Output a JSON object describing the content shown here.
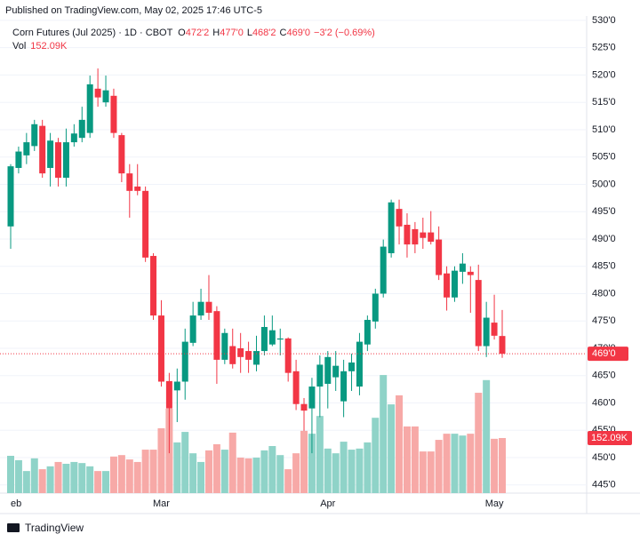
{
  "header": {
    "published": "Published on TradingView.com, May 02, 2025 17:46 UTC-5",
    "symbol": "Corn Futures (Jul 2025) · 1D · CBOT",
    "ohlc": [
      {
        "key": "O",
        "value": "472'2"
      },
      {
        "key": "H",
        "value": "477'0"
      },
      {
        "key": "L",
        "value": "468'2"
      },
      {
        "key": "C",
        "value": "469'0"
      }
    ],
    "change": "−3'2 (−0.69%)",
    "volume_name": "Vol",
    "volume_label": "152.09K"
  },
  "footer": {
    "logo": "TradingView"
  },
  "chart_data": {
    "type": "candlestick",
    "categories": [
      "eb",
      null,
      null,
      null,
      null,
      null,
      null,
      null,
      null,
      null,
      null,
      null,
      null,
      null,
      null,
      null,
      null,
      null,
      null,
      "Mar",
      null,
      null,
      null,
      null,
      null,
      null,
      null,
      null,
      null,
      null,
      null,
      null,
      null,
      null,
      null,
      null,
      null,
      null,
      null,
      null,
      "Apr",
      null,
      null,
      null,
      null,
      null,
      null,
      null,
      null,
      null,
      null,
      null,
      null,
      null,
      null,
      null,
      null,
      null,
      null,
      null,
      null,
      "May",
      null
    ],
    "open": [
      492.3,
      503,
      505.3,
      507,
      510.7,
      503,
      507.7,
      501.2,
      507.7,
      508.5,
      509.4,
      517.5,
      515,
      516.2,
      509,
      502,
      499.6,
      498.8,
      486.9,
      476,
      464,
      462.3,
      463.9,
      471,
      476,
      478.5,
      476.8,
      467.9,
      470.4,
      470,
      469.5,
      467,
      469.5,
      470.7,
      471.6,
      471.8,
      465.8,
      459.8,
      459,
      463,
      463.5,
      464.7,
      460.3,
      465.8,
      463,
      470.7,
      474.9,
      480,
      487.4,
      495.5,
      492.6,
      491.8,
      491.2,
      491.2,
      489.9,
      483.7,
      479.3,
      484,
      484,
      482.5,
      470.4,
      474.7,
      472.25
    ],
    "high": [
      503.7,
      506.9,
      509.4,
      511.8,
      511.8,
      509.4,
      508.5,
      510.2,
      511,
      514.2,
      519.9,
      521.2,
      519.9,
      517.5,
      509.4,
      503.7,
      503.7,
      499.6,
      487.4,
      478.8,
      465.5,
      466.3,
      473.6,
      478.5,
      480.9,
      483.4,
      477.7,
      473.6,
      473.6,
      472.8,
      471.2,
      472.3,
      476,
      476,
      473.6,
      472,
      467.9,
      460.9,
      464.6,
      468.7,
      469.5,
      469.5,
      467.9,
      469,
      472.8,
      476,
      480.9,
      489.9,
      497.2,
      497.2,
      494.7,
      493.1,
      493.9,
      495.1,
      492.3,
      485,
      485,
      487.4,
      485,
      485.3,
      478.5,
      479.8,
      477
    ],
    "low": [
      488.2,
      502,
      503.7,
      506.1,
      501.2,
      499.6,
      499.6,
      499.6,
      506.9,
      507.7,
      508.5,
      514.2,
      514.2,
      508.5,
      500.4,
      493.9,
      498,
      485.8,
      475.2,
      463,
      450.8,
      456.5,
      460.6,
      470.4,
      475.2,
      475.2,
      463.5,
      467.1,
      466.3,
      465.5,
      465.5,
      465.8,
      468.7,
      470.4,
      468.7,
      463.9,
      458.7,
      454.9,
      450.8,
      457.4,
      459,
      462.2,
      457.4,
      462.2,
      461.4,
      469.5,
      473.6,
      479.3,
      486.6,
      489,
      486.6,
      487.4,
      488.2,
      489,
      482.5,
      476.9,
      478.5,
      481.8,
      476.5,
      469.5,
      468.4,
      471.6,
      468.25
    ],
    "close": [
      503.3,
      506,
      507.7,
      511,
      502,
      508,
      501.2,
      507.7,
      509.3,
      511.8,
      518.3,
      515.9,
      517.2,
      509.4,
      502,
      498.8,
      498.8,
      486.6,
      476,
      463.9,
      459,
      463.9,
      471.2,
      476,
      478.5,
      476.5,
      467.9,
      472.8,
      467.1,
      468.4,
      467.9,
      469.5,
      473.9,
      473.3,
      471.8,
      465.5,
      459.8,
      458.6,
      463,
      467,
      468.4,
      466.8,
      465.8,
      467.4,
      471.2,
      475.2,
      480,
      488.6,
      496.7,
      492.3,
      489,
      489,
      490.2,
      489.5,
      483.4,
      479.3,
      484.2,
      485.5,
      483.4,
      470.4,
      475.6,
      472.3,
      469
    ],
    "volume": [
      103,
      91,
      61,
      96,
      66,
      74,
      86,
      81,
      86,
      83,
      74,
      61,
      61,
      101,
      105,
      93,
      86,
      120,
      120,
      179,
      233,
      140,
      169,
      110,
      86,
      118,
      135,
      120,
      167,
      98,
      96,
      98,
      118,
      130,
      105,
      66,
      110,
      172,
      164,
      213,
      123,
      110,
      142,
      120,
      123,
      140,
      208,
      326,
      245,
      270,
      184,
      184,
      115,
      115,
      147,
      164,
      164,
      159,
      164,
      277,
      312,
      150,
      152.09
    ],
    "ylim": [
      443.5,
      530.8
    ],
    "yticks": [
      {
        "value": 445,
        "label": "445'0"
      },
      {
        "value": 450,
        "label": "450'0"
      },
      {
        "value": 455,
        "label": "455'0"
      },
      {
        "value": 460,
        "label": "460'0"
      },
      {
        "value": 465,
        "label": "465'0"
      },
      {
        "value": 470,
        "label": "470'0"
      },
      {
        "value": 475,
        "label": "475'0"
      },
      {
        "value": 480,
        "label": "480'0"
      },
      {
        "value": 485,
        "label": "485'0"
      },
      {
        "value": 490,
        "label": "490'0"
      },
      {
        "value": 495,
        "label": "495'0"
      },
      {
        "value": 500,
        "label": "500'0"
      },
      {
        "value": 505,
        "label": "505'0"
      },
      {
        "value": 510,
        "label": "510'0"
      },
      {
        "value": 515,
        "label": "515'0"
      },
      {
        "value": 520,
        "label": "520'0"
      },
      {
        "value": 525,
        "label": "525'0"
      },
      {
        "value": 530,
        "label": "530'0"
      }
    ],
    "volume_ylim": [
      0,
      1317
    ],
    "last_price_label": "469'0",
    "grid": true,
    "up_color": "#089981",
    "down_color": "#f23645",
    "volume_up_color": "#8fd3c8",
    "volume_down_color": "#f7a9a7"
  }
}
